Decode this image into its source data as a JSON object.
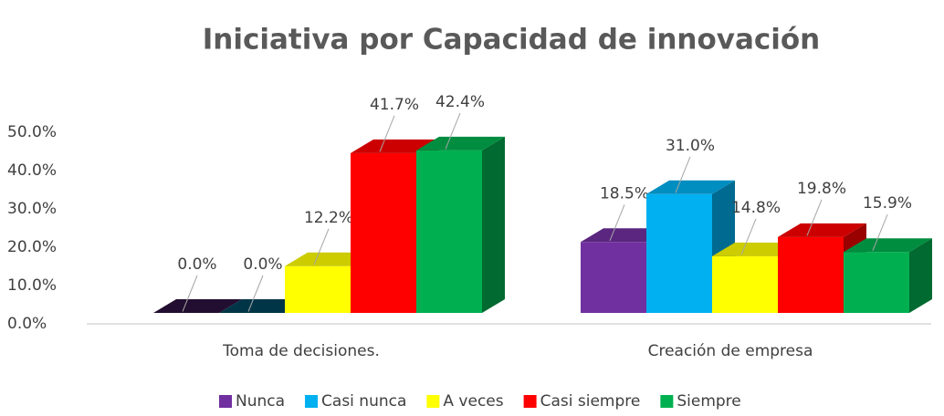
{
  "chart_data": {
    "type": "bar3d",
    "title": "Iniciativa por Capacidad de innovación",
    "categories": [
      "Toma de decisiones.",
      "Creación de empresa"
    ],
    "series": [
      {
        "name": "Nunca",
        "color": "#7030a0",
        "values": [
          0.0,
          18.5
        ],
        "value_labels": [
          "0.0%",
          "18.5%"
        ]
      },
      {
        "name": "Casi nunca",
        "color": "#00b0f0",
        "values": [
          0.0,
          31.0
        ],
        "value_labels": [
          "0.0%",
          "31.0%"
        ]
      },
      {
        "name": "A veces",
        "color": "#ffff00",
        "values": [
          12.2,
          14.8
        ],
        "value_labels": [
          "12.2%",
          "14.8%"
        ]
      },
      {
        "name": "Casi siempre",
        "color": "#ff0000",
        "values": [
          41.7,
          19.8
        ],
        "value_labels": [
          "41.7%",
          "19.8%"
        ]
      },
      {
        "name": "Siempre",
        "color": "#00b050",
        "values": [
          42.4,
          15.9
        ],
        "value_labels": [
          "42.4%",
          "15.9%"
        ]
      }
    ],
    "ylim": [
      0,
      50
    ],
    "yticks": [
      {
        "value": 0,
        "label": "0.0%"
      },
      {
        "value": 10,
        "label": "10.0%"
      },
      {
        "value": 20,
        "label": "20.0%"
      },
      {
        "value": 30,
        "label": "30.0%"
      },
      {
        "value": 40,
        "label": "40.0%"
      },
      {
        "value": 50,
        "label": "50.0%"
      }
    ],
    "legend": "bottom"
  }
}
